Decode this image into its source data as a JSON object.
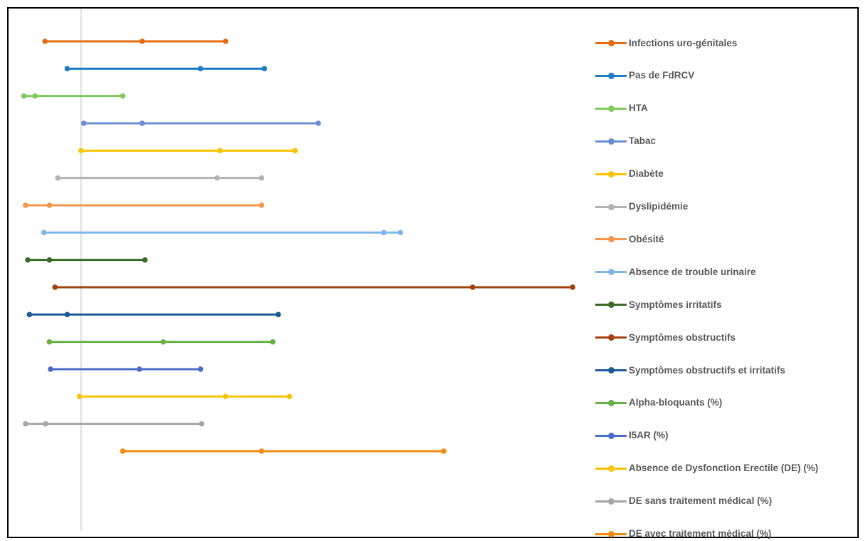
{
  "chart_data": {
    "type": "dumbbell",
    "title": "",
    "xlabel": "",
    "ylabel": "",
    "legend_position": "right",
    "grid": false,
    "xlim": [
      0,
      100
    ],
    "reference_x": 10.5,
    "series": [
      {
        "name": "Infections uro-génitales",
        "color": "#E56C10",
        "values": [
          4.0,
          21.5,
          36.5
        ]
      },
      {
        "name": "Pas de FdRCV",
        "color": "#1F7CC6",
        "values": [
          8.0,
          32.0,
          43.5
        ]
      },
      {
        "name": "HTA",
        "color": "#7DCB5B",
        "values": [
          0.2,
          2.2,
          18.0
        ]
      },
      {
        "name": "Tabac",
        "color": "#6C8FD4",
        "values": [
          11.0,
          21.5,
          53.2
        ]
      },
      {
        "name": "Diabète",
        "color": "#F8C300",
        "values": [
          10.5,
          35.5,
          49.0
        ]
      },
      {
        "name": "Dyslipidémie",
        "color": "#B3B3B3",
        "values": [
          6.3,
          35.0,
          43.0
        ]
      },
      {
        "name": "Obésité",
        "color": "#F4954B",
        "values": [
          0.5,
          4.8,
          43.0
        ]
      },
      {
        "name": "Absence de trouble urinaire",
        "color": "#7EB6E6",
        "values": [
          3.8,
          65.0,
          68.0
        ]
      },
      {
        "name": "Symptômes irritatifs",
        "color": "#3A6B26",
        "values": [
          0.9,
          4.8,
          22.0
        ]
      },
      {
        "name": "Symptômes  obstructifs",
        "color": "#A5410E",
        "values": [
          5.8,
          81.0,
          99.0
        ]
      },
      {
        "name": "Symptômes obstructifs et irritatifs",
        "color": "#1B5A92",
        "values": [
          1.2,
          8.0,
          46.0
        ]
      },
      {
        "name": "Alpha-bloquants (%)",
        "color": "#63B144",
        "values": [
          4.8,
          25.3,
          45.0
        ]
      },
      {
        "name": "I5AR (%)",
        "color": "#4A6CC8",
        "values": [
          5.0,
          21.0,
          32.0
        ]
      },
      {
        "name": "Absence de Dysfonction Erectile (DE) (%)",
        "color": "#F8C300",
        "values": [
          10.2,
          36.5,
          48.0
        ]
      },
      {
        "name": "DE sans traitement médical (%)",
        "color": "#A6A6A6",
        "values": [
          0.5,
          4.1,
          32.2
        ]
      },
      {
        "name": "DE avec traitement médical (%)",
        "color": "#F28A10",
        "values": [
          18.0,
          43.0,
          75.8
        ]
      }
    ]
  }
}
